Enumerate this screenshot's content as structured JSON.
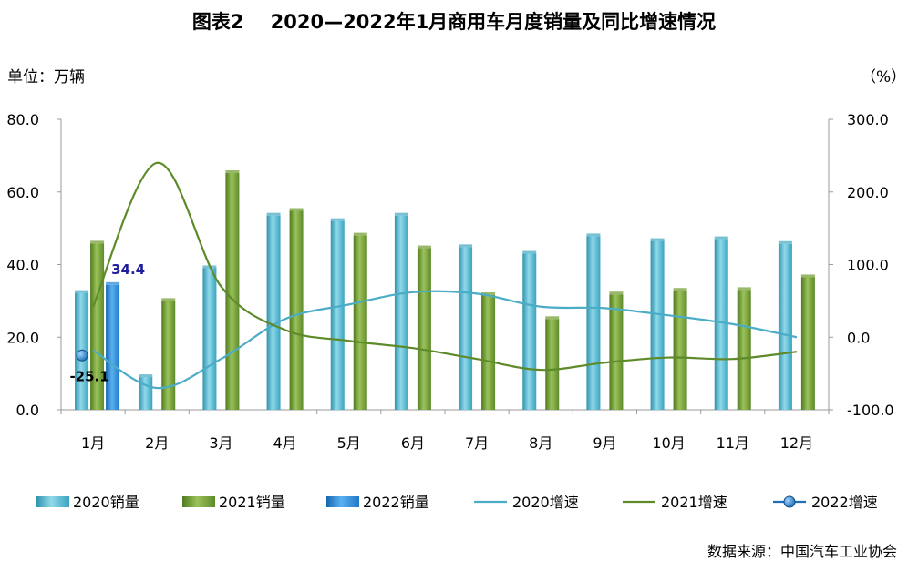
{
  "title": "图表2    2020—2022年1月商用车月度销量及同比增速情况",
  "unit_left": "单位：万辆",
  "unit_right": "（%）",
  "source": "数据来源：中国汽车工业协会",
  "chart_data": {
    "type": "bar",
    "categories": [
      "1月",
      "2月",
      "3月",
      "4月",
      "5月",
      "6月",
      "7月",
      "8月",
      "9月",
      "10月",
      "11月",
      "12月"
    ],
    "ylim": [
      0,
      80
    ],
    "y_ticks": [
      "0.0",
      "20.0",
      "40.0",
      "60.0",
      "80.0"
    ],
    "y2lim": [
      -100,
      300
    ],
    "y2_ticks": [
      "-100.0",
      "0.0",
      "100.0",
      "200.0",
      "300.0"
    ],
    "grid": false,
    "legend_position": "bottom",
    "series": [
      {
        "name": "2020销量",
        "kind": "bar",
        "color": "#4bacc6",
        "values": [
          32.2,
          9,
          39,
          53.5,
          52,
          53.5,
          44.8,
          43,
          47.8,
          46.5,
          47,
          45.7
        ]
      },
      {
        "name": "2021销量",
        "kind": "bar",
        "color": "#77a03a",
        "values": [
          45.8,
          30,
          65.2,
          54.8,
          48,
          44.5,
          31.6,
          25,
          31.8,
          32.8,
          33,
          36.5
        ]
      },
      {
        "name": "2022销量",
        "kind": "bar",
        "color": "#2e8ad8",
        "values": [
          34.4,
          null,
          null,
          null,
          null,
          null,
          null,
          null,
          null,
          null,
          null,
          null
        ]
      },
      {
        "name": "2020增速",
        "kind": "line",
        "axis": "right",
        "color": "#4bacc6",
        "values": [
          -18,
          -70,
          -30,
          25,
          45,
          62,
          60,
          42,
          40,
          30,
          18,
          0
        ]
      },
      {
        "name": "2021增速",
        "kind": "line",
        "axis": "right",
        "color": "#5e8a2a",
        "values": [
          42,
          240,
          70,
          10,
          -5,
          -15,
          -30,
          -45,
          -35,
          -28,
          -30,
          -20
        ]
      },
      {
        "name": "2022增速",
        "kind": "point",
        "axis": "right",
        "color": "#1f6fb5",
        "values": [
          -25.1,
          null,
          null,
          null,
          null,
          null,
          null,
          null,
          null,
          null,
          null,
          null
        ]
      }
    ],
    "data_labels": [
      {
        "series": "2022销量",
        "category": "1月",
        "text": "34.4",
        "color": "#1f1f9e"
      },
      {
        "series": "2022增速",
        "category": "1月",
        "text": "-25.1",
        "color": "#000000"
      }
    ]
  }
}
